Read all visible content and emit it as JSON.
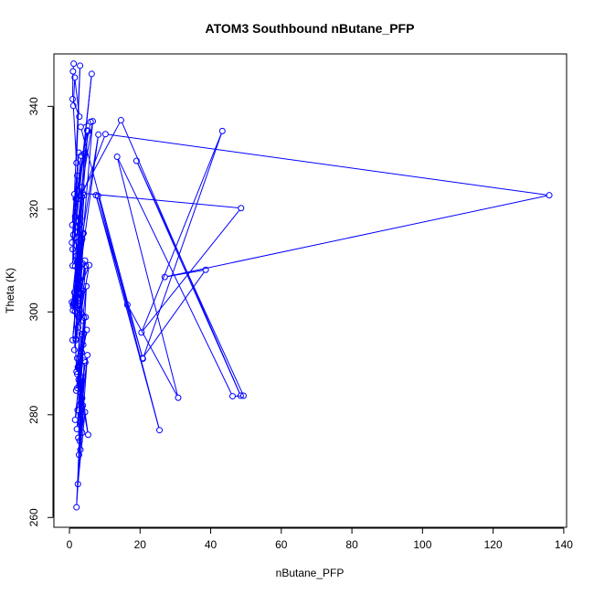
{
  "chart_data": {
    "type": "line",
    "title": "ATOM3 Southbound nButane_PFP",
    "xlabel": "nButane_PFP",
    "ylabel": "Theta (K)",
    "xlim": [
      -4.4,
      140.8
    ],
    "ylim": [
      258.1,
      350.2
    ],
    "xticks": [
      "0",
      "20",
      "40",
      "60",
      "80",
      "100",
      "120",
      "140"
    ],
    "yticks": [
      "260",
      "280",
      "300",
      "320",
      "340"
    ],
    "grid": false,
    "legend": "none",
    "marker": "open-circle",
    "color": "#0000ff",
    "series": [
      {
        "x": [
          1.2,
          1.0,
          0.9,
          2.8,
          1.5,
          1.1,
          2.0,
          3.0,
          1.4,
          0.8,
          2.6,
          1.9,
          0.7,
          2.2,
          1.6,
          3.3,
          1.1,
          0.9,
          2.4,
          1.8,
          6.3,
          0.9,
          1.6,
          2.1,
          5.2,
          1.5,
          3.0,
          8.2,
          2.7,
          1.2,
          2.0,
          3.6,
          1.0,
          2.4,
          1.4,
          0.7,
          3.0,
          1.8,
          4.1,
          2.3,
          1.2,
          3.4,
          2.1,
          0.9,
          1.6,
          2.7,
          3.8,
          2.2,
          1.4,
          5.6,
          1.0,
          2.9,
          1.8,
          4.4,
          2.5,
          1.1,
          3.2,
          4.6,
          2.0,
          1.3,
          3.7,
          2.4,
          4.9,
          1.9,
          3.0,
          2.2,
          4.1,
          2.8,
          3.5,
          1.6,
          4.5,
          2.1,
          3.9,
          2.5,
          5.1,
          3.1,
          2.3,
          3.6,
          4.2,
          2.7,
          3.3,
          2.0,
          3.8,
          2.9,
          4.4,
          2.4,
          3.1,
          5.3,
          2.6,
          3.5,
          2.2,
          3.0,
          2.8,
          3.6,
          2.4,
          3.9,
          3.2,
          4.6,
          2.9,
          3.4,
          2.6,
          2.2,
          4.1,
          4.8,
          3.7,
          3.0,
          3.4,
          2.1,
          3.8,
          2.5,
          3.6,
          2.9,
          4.0,
          2.3,
          6.6,
          3.1,
          14.6,
          48.5,
          19.0,
          49.3,
          46.2,
          13.5,
          30.8,
          16.4,
          8.1,
          25.5,
          7.5,
          20.8,
          43.3,
          20.4,
          48.6,
          3.8,
          10.2,
          135.9,
          27.0,
          38.6,
          20.7,
          3.2,
          6.0,
          2.3,
          5.0,
          1.8,
          4.2,
          3.1,
          2.0,
          3.5,
          2.7,
          1.4,
          2.9
        ],
        "y": [
          348.3,
          346.8,
          341.4,
          338.0,
          345.6,
          340.1,
          329.0,
          347.9,
          322.9,
          316.9,
          331.0,
          322.0,
          313.5,
          326.5,
          318.6,
          330.4,
          315.0,
          309.0,
          322.0,
          316.6,
          346.3,
          312.2,
          308.9,
          315.4,
          335.2,
          302.0,
          312.1,
          334.5,
          306.4,
          301.5,
          310.9,
          324.3,
          300.3,
          313.6,
          303.8,
          301.9,
          317.1,
          294.5,
          322.7,
          305.9,
          301.8,
          313.8,
          303.1,
          294.5,
          300.1,
          309.2,
          315.2,
          299.8,
          292.6,
          309.1,
          301.2,
          306.4,
          294.8,
          310.0,
          297.0,
          301.2,
          303.8,
          309.0,
          288.4,
          301.8,
          304.1,
          289.1,
          296.5,
          284.7,
          291.3,
          285.2,
          298.9,
          281.9,
          292.1,
          279.0,
          290.2,
          277.2,
          287.3,
          275.5,
          291.6,
          273.2,
          280.9,
          276.5,
          290.5,
          272.2,
          283.1,
          262.0,
          281.8,
          274.9,
          280.5,
          266.5,
          284.4,
          276.1,
          289.4,
          281.6,
          287.9,
          278.5,
          289.7,
          283.2,
          289.3,
          293.6,
          285.8,
          299.0,
          289.5,
          295.7,
          286.8,
          291.0,
          295.8,
          305.0,
          298.3,
          303.7,
          299.6,
          301.4,
          309.4,
          303.8,
          314.2,
          300.4,
          315.3,
          302.6,
          337.1,
          322.6,
          337.3,
          283.7,
          329.4,
          283.7,
          283.6,
          330.2,
          283.3,
          301.4,
          322.6,
          277.0,
          322.7,
          290.9,
          335.2,
          296.0,
          320.2,
          323.1,
          334.6,
          322.7,
          306.8,
          308.2,
          291.0,
          336.0,
          337.0,
          323.5,
          335.3,
          322.0,
          330.8,
          318.2,
          314.5,
          322.4,
          312.6,
          301.6,
          317.0
        ]
      }
    ]
  }
}
